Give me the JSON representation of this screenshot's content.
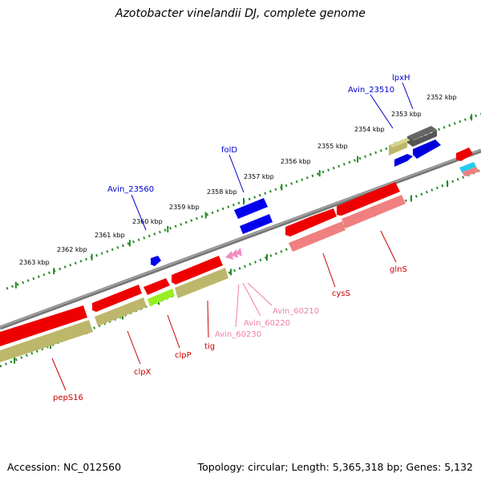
{
  "title": "Azotobacter vinelandii DJ, complete genome",
  "footer": {
    "accession": "Accession: NC_012560",
    "summary": "Topology: circular; Length: 5,365,318 bp; Genes: 5,132"
  },
  "scale_labels": [
    "2352 kbp",
    "2353 kbp",
    "2354 kbp",
    "2355 kbp",
    "2356 kbp",
    "2357 kbp",
    "2358 kbp",
    "2359 kbp",
    "2360 kbp",
    "2361 kbp",
    "2362 kbp",
    "2363 kbp"
  ],
  "gene_labels": [
    {
      "text": "lpxH",
      "color": "#0000cc"
    },
    {
      "text": "Avin_23510",
      "color": "#0000cc"
    },
    {
      "text": "folD",
      "color": "#0000cc"
    },
    {
      "text": "Avin_23560",
      "color": "#0000cc"
    },
    {
      "text": "glnS",
      "color": "#cc0000"
    },
    {
      "text": "cysS",
      "color": "#cc0000"
    },
    {
      "text": "Avin_60210",
      "color": "#f080a0"
    },
    {
      "text": "Avin_60220",
      "color": "#f080a0"
    },
    {
      "text": "Avin_60230",
      "color": "#f080a0"
    },
    {
      "text": "tig",
      "color": "#cc0000"
    },
    {
      "text": "clpP",
      "color": "#cc0000"
    },
    {
      "text": "clpX",
      "color": "#cc0000"
    },
    {
      "text": "pepS16",
      "color": "#cc0000"
    }
  ],
  "colors": {
    "backbone": "#808080",
    "gene_red": "#ee0000",
    "gene_blue": "#0000ee",
    "gene_pink": "#f08080",
    "gene_olive": "#bdb76b",
    "gene_gray": "#666666",
    "gene_lime": "#99ee22",
    "gene_cyan": "#22ccee",
    "tick_green": "#228b22"
  }
}
